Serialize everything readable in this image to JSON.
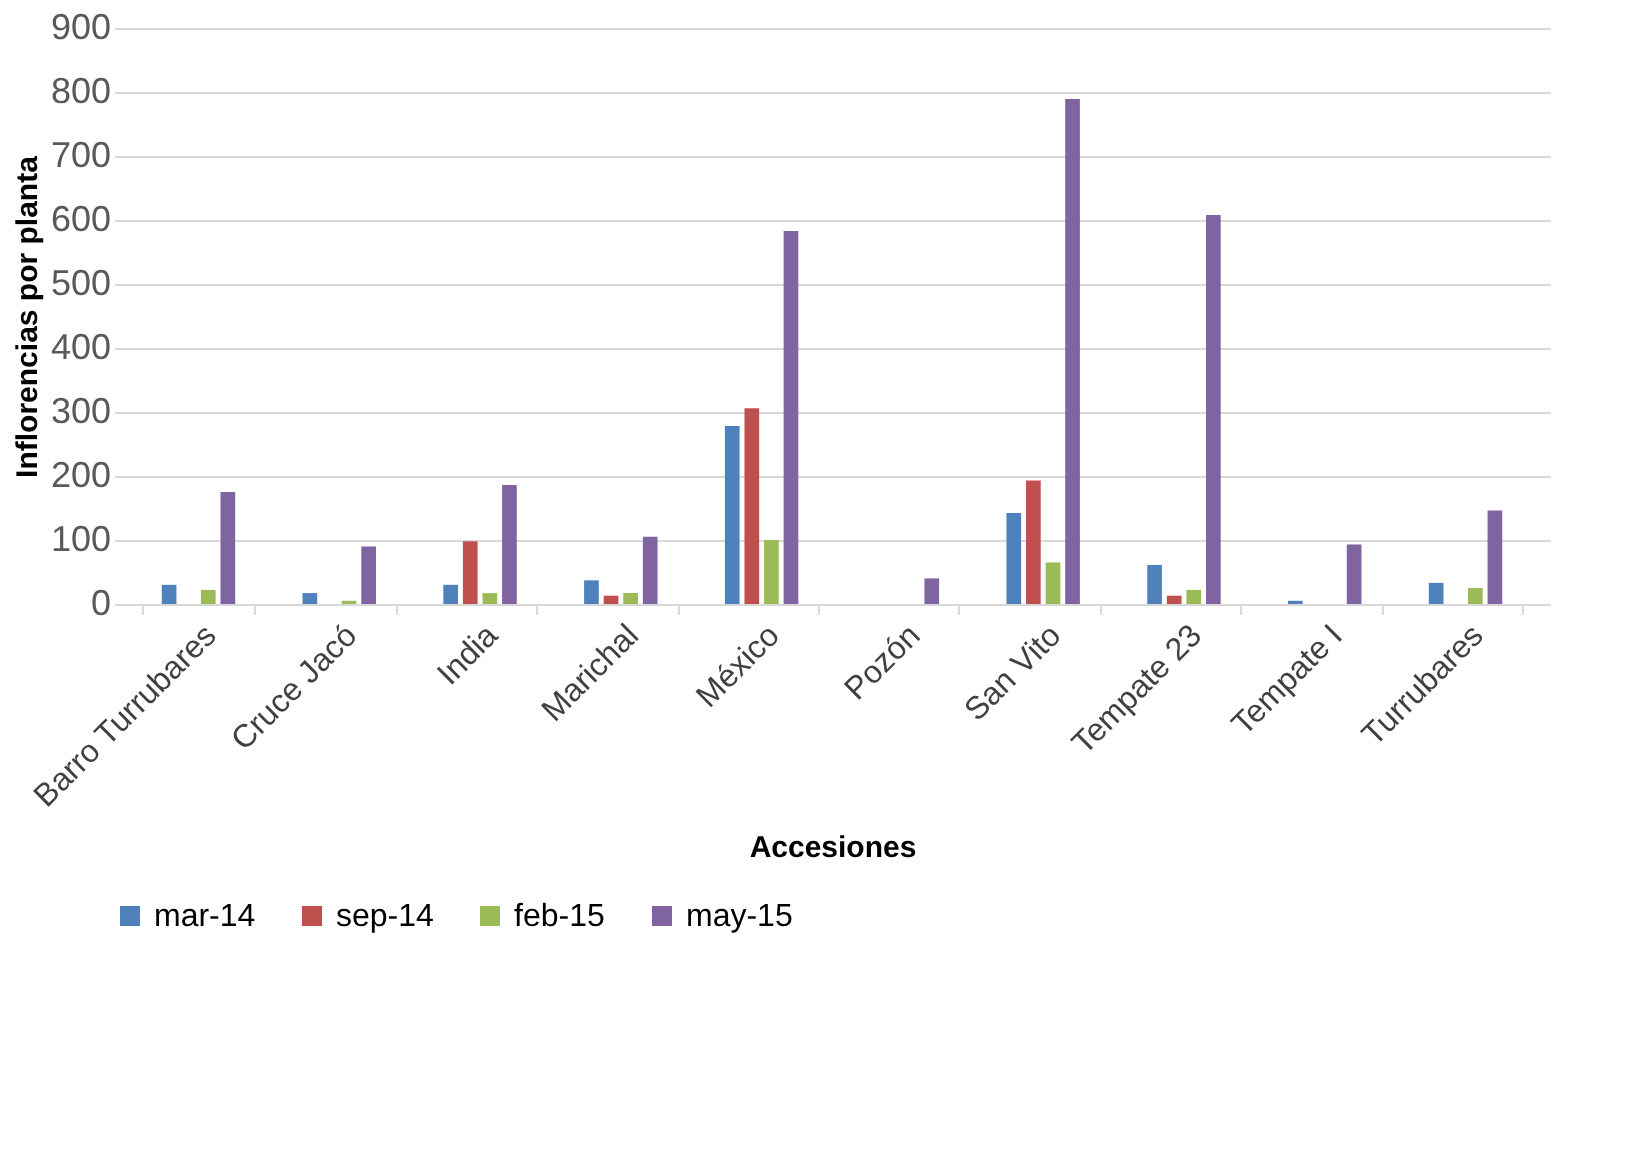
{
  "chart_data": {
    "type": "bar",
    "xlabel": "Accesiones",
    "ylabel": "Inflorencias por planta",
    "categories": [
      "Barro Turrubares",
      "Cruce Jacó",
      "India",
      "Marichal",
      "México",
      "Pozón",
      "San Vito",
      "Tempate 23",
      "Tempate I",
      "Turrubares"
    ],
    "series": [
      {
        "name": "mar-14",
        "color": "#4f81bd",
        "values": [
          30,
          17,
          30,
          37,
          278,
          null,
          142,
          61,
          5,
          33
        ]
      },
      {
        "name": "sep-14",
        "color": "#c0504d",
        "values": [
          null,
          null,
          98,
          13,
          306,
          null,
          193,
          13,
          null,
          null
        ]
      },
      {
        "name": "feb-15",
        "color": "#9bbb59",
        "values": [
          22,
          5,
          17,
          17,
          100,
          null,
          65,
          22,
          null,
          25
        ]
      },
      {
        "name": "may-15",
        "color": "#8064a2",
        "values": [
          175,
          90,
          186,
          105,
          583,
          40,
          789,
          608,
          93,
          146
        ]
      }
    ],
    "ylim": [
      0,
      900
    ],
    "yticks": [
      0,
      100,
      200,
      300,
      400,
      500,
      600,
      700,
      800,
      900
    ],
    "grid": "y",
    "legend": "bottom"
  }
}
